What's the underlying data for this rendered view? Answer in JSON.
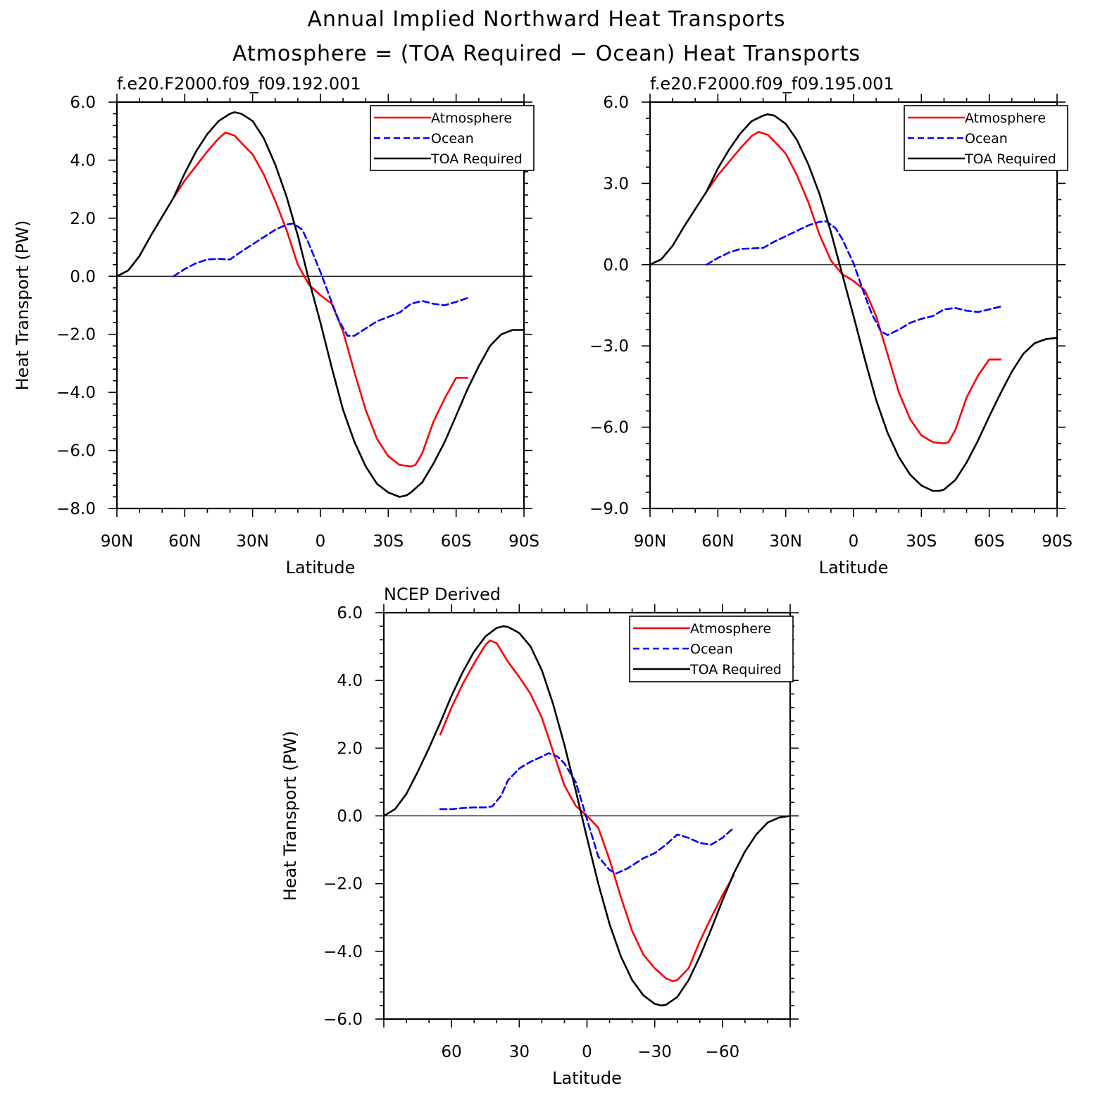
{
  "figure": {
    "title_line1": "Annual Implied Northward Heat Transports",
    "title_line2": "Atmosphere = (TOA Required − Ocean) Heat Transports"
  },
  "colors": {
    "atmosphere": "#ff0000",
    "ocean": "#0000ff",
    "toa": "#000000"
  },
  "legend": {
    "atmosphere": "Atmosphere",
    "ocean": "Ocean",
    "toa": "TOA Required",
    "placement": "top-right"
  },
  "chart_data": [
    {
      "type": "line",
      "title": "f.e20.F2000.f09_f09.192.001",
      "xlabel": "Latitude",
      "ylabel": "Heat Transport (PW)",
      "xlim": [
        90,
        -90
      ],
      "ylim": [
        -8,
        6
      ],
      "xticks": [
        90,
        60,
        30,
        0,
        -30,
        -60,
        -90
      ],
      "xtick_labels": [
        "90N",
        "60N",
        "30N",
        "0",
        "30S",
        "60S",
        "90S"
      ],
      "yticks": [
        6,
        4,
        2,
        0,
        -2,
        -4,
        -6,
        -8
      ],
      "ytick_labels": [
        "6.0",
        "4.0",
        "2.0",
        "0.0",
        "−2.0",
        "−4.0",
        "−6.0",
        "−8.0"
      ],
      "grid": false,
      "series": [
        {
          "name": "Atmosphere",
          "color": "#ff0000",
          "dash": "solid",
          "x": [
            65,
            60,
            55,
            50,
            45,
            42,
            38,
            35,
            30,
            25,
            20,
            15,
            10,
            5,
            0,
            -5,
            -10,
            -15,
            -20,
            -25,
            -30,
            -35,
            -40,
            -42,
            -45,
            -50,
            -55,
            -60,
            -65
          ],
          "y": [
            2.7,
            3.3,
            3.8,
            4.3,
            4.75,
            4.95,
            4.85,
            4.6,
            4.2,
            3.5,
            2.6,
            1.6,
            0.4,
            -0.3,
            -0.65,
            -0.95,
            -1.9,
            -3.3,
            -4.6,
            -5.6,
            -6.2,
            -6.5,
            -6.55,
            -6.5,
            -6.1,
            -5.0,
            -4.2,
            -3.5,
            -3.5
          ]
        },
        {
          "name": "Ocean",
          "color": "#0000ff",
          "dash": "dashed",
          "x": [
            65,
            60,
            55,
            50,
            45,
            40,
            35,
            30,
            25,
            20,
            15,
            12,
            8,
            5,
            0,
            -5,
            -8,
            -12,
            -15,
            -20,
            -25,
            -30,
            -35,
            -40,
            -45,
            -50,
            -55,
            -60,
            -65
          ],
          "y": [
            0.0,
            0.25,
            0.45,
            0.58,
            0.6,
            0.58,
            0.85,
            1.1,
            1.35,
            1.6,
            1.78,
            1.82,
            1.6,
            1.1,
            0.15,
            -0.9,
            -1.5,
            -2.05,
            -2.05,
            -1.8,
            -1.55,
            -1.4,
            -1.25,
            -0.95,
            -0.85,
            -0.95,
            -1.0,
            -0.88,
            -0.75
          ]
        },
        {
          "name": "TOA Required",
          "color": "#000000",
          "dash": "solid",
          "x": [
            90,
            85,
            80,
            75,
            70,
            65,
            60,
            55,
            50,
            45,
            40,
            38,
            35,
            30,
            25,
            20,
            15,
            10,
            5,
            0,
            -5,
            -10,
            -15,
            -20,
            -25,
            -30,
            -35,
            -38,
            -40,
            -45,
            -50,
            -55,
            -60,
            -65,
            -70,
            -75,
            -80,
            -85,
            -90
          ],
          "y": [
            0.0,
            0.2,
            0.7,
            1.4,
            2.05,
            2.7,
            3.55,
            4.3,
            4.9,
            5.35,
            5.6,
            5.65,
            5.6,
            5.35,
            4.75,
            3.85,
            2.75,
            1.4,
            -0.15,
            -1.6,
            -3.15,
            -4.6,
            -5.7,
            -6.55,
            -7.15,
            -7.45,
            -7.6,
            -7.55,
            -7.45,
            -7.1,
            -6.45,
            -5.7,
            -4.8,
            -3.9,
            -3.1,
            -2.4,
            -2.0,
            -1.85,
            -1.85
          ]
        }
      ]
    },
    {
      "type": "line",
      "title": "f.e20.F2000.f09_f09.195.001",
      "xlabel": "Latitude",
      "ylabel": "",
      "xlim": [
        90,
        -90
      ],
      "ylim": [
        -9,
        6
      ],
      "xticks": [
        90,
        60,
        30,
        0,
        -30,
        -60,
        -90
      ],
      "xtick_labels": [
        "90N",
        "60N",
        "30N",
        "0",
        "30S",
        "60S",
        "90S"
      ],
      "yticks": [
        6,
        3,
        0,
        -3,
        -6,
        -9
      ],
      "ytick_labels": [
        "6.0",
        "3.0",
        "0.0",
        "−3.0",
        "−6.0",
        "−9.0"
      ],
      "grid": false,
      "series": [
        {
          "name": "Atmosphere",
          "color": "#ff0000",
          "dash": "solid",
          "x": [
            65,
            60,
            55,
            50,
            45,
            42,
            38,
            35,
            30,
            25,
            20,
            15,
            10,
            5,
            0,
            -5,
            -10,
            -15,
            -20,
            -25,
            -30,
            -35,
            -40,
            -42,
            -45,
            -50,
            -55,
            -60,
            -65
          ],
          "y": [
            2.7,
            3.3,
            3.8,
            4.3,
            4.75,
            4.9,
            4.8,
            4.55,
            4.1,
            3.3,
            2.3,
            1.1,
            0.15,
            -0.35,
            -0.6,
            -0.95,
            -1.9,
            -3.3,
            -4.7,
            -5.7,
            -6.3,
            -6.55,
            -6.6,
            -6.55,
            -6.1,
            -4.9,
            -4.1,
            -3.5,
            -3.5
          ]
        },
        {
          "name": "Ocean",
          "color": "#0000ff",
          "dash": "dashed",
          "x": [
            65,
            60,
            55,
            50,
            45,
            40,
            35,
            30,
            25,
            20,
            15,
            12,
            8,
            5,
            0,
            -5,
            -8,
            -12,
            -15,
            -20,
            -25,
            -30,
            -35,
            -40,
            -45,
            -50,
            -55,
            -60,
            -65
          ],
          "y": [
            0.0,
            0.25,
            0.45,
            0.58,
            0.6,
            0.62,
            0.85,
            1.05,
            1.25,
            1.45,
            1.58,
            1.6,
            1.35,
            0.95,
            0.05,
            -1.15,
            -1.8,
            -2.45,
            -2.6,
            -2.4,
            -2.15,
            -2.0,
            -1.9,
            -1.65,
            -1.6,
            -1.7,
            -1.75,
            -1.65,
            -1.55
          ]
        },
        {
          "name": "TOA Required",
          "color": "#000000",
          "dash": "solid",
          "x": [
            90,
            85,
            80,
            75,
            70,
            65,
            60,
            55,
            50,
            45,
            40,
            38,
            35,
            30,
            25,
            20,
            15,
            10,
            5,
            0,
            -5,
            -10,
            -15,
            -20,
            -25,
            -30,
            -35,
            -38,
            -40,
            -45,
            -50,
            -55,
            -60,
            -65,
            -70,
            -75,
            -80,
            -85,
            -90
          ],
          "y": [
            0.0,
            0.2,
            0.7,
            1.4,
            2.05,
            2.7,
            3.55,
            4.25,
            4.85,
            5.3,
            5.5,
            5.55,
            5.5,
            5.2,
            4.6,
            3.7,
            2.6,
            1.2,
            -0.35,
            -1.9,
            -3.5,
            -5.0,
            -6.2,
            -7.1,
            -7.75,
            -8.15,
            -8.35,
            -8.35,
            -8.3,
            -7.95,
            -7.3,
            -6.5,
            -5.6,
            -4.75,
            -3.95,
            -3.3,
            -2.9,
            -2.75,
            -2.7
          ]
        }
      ]
    },
    {
      "type": "line",
      "title": "NCEP Derived",
      "xlabel": "Latitude",
      "ylabel": "Heat Transport (PW)",
      "xlim": [
        90,
        -90
      ],
      "ylim": [
        -6,
        6
      ],
      "xticks": [
        60,
        30,
        0,
        -30,
        -60
      ],
      "xtick_labels": [
        "60",
        "30",
        "0",
        "−30",
        "−60"
      ],
      "yticks": [
        6,
        4,
        2,
        0,
        -2,
        -4,
        -6
      ],
      "ytick_labels": [
        "6.0",
        "4.0",
        "2.0",
        "0.0",
        "−2.0",
        "−4.0",
        "−6.0"
      ],
      "grid": false,
      "series": [
        {
          "name": "Atmosphere",
          "color": "#ff0000",
          "dash": "solid",
          "x": [
            65,
            60,
            55,
            50,
            45,
            43,
            40,
            35,
            30,
            25,
            20,
            15,
            10,
            5,
            0,
            -5,
            -10,
            -15,
            -20,
            -25,
            -30,
            -35,
            -38,
            -40,
            -45,
            -50,
            -55,
            -60,
            -65
          ],
          "y": [
            2.4,
            3.2,
            3.9,
            4.5,
            5.05,
            5.18,
            5.1,
            4.55,
            4.1,
            3.6,
            2.9,
            1.9,
            0.9,
            0.3,
            0.0,
            -0.35,
            -1.3,
            -2.4,
            -3.4,
            -4.1,
            -4.5,
            -4.8,
            -4.88,
            -4.85,
            -4.5,
            -3.7,
            -3.0,
            -2.35,
            -1.75
          ]
        },
        {
          "name": "Ocean",
          "color": "#0000ff",
          "dash": "dashed",
          "x": [
            65,
            60,
            55,
            50,
            45,
            42,
            38,
            35,
            30,
            25,
            20,
            17,
            13,
            10,
            5,
            0,
            -5,
            -10,
            -13,
            -18,
            -25,
            -30,
            -35,
            -40,
            -45,
            -50,
            -55,
            -60,
            -65
          ],
          "y": [
            0.2,
            0.2,
            0.23,
            0.25,
            0.25,
            0.28,
            0.6,
            1.05,
            1.4,
            1.6,
            1.75,
            1.85,
            1.75,
            1.55,
            1.0,
            -0.1,
            -1.2,
            -1.6,
            -1.7,
            -1.55,
            -1.25,
            -1.1,
            -0.85,
            -0.55,
            -0.65,
            -0.8,
            -0.85,
            -0.65,
            -0.35
          ]
        },
        {
          "name": "TOA Required",
          "color": "#000000",
          "dash": "solid",
          "x": [
            90,
            85,
            80,
            75,
            70,
            65,
            60,
            55,
            50,
            45,
            40,
            37,
            35,
            30,
            25,
            20,
            15,
            10,
            5,
            0,
            -5,
            -10,
            -15,
            -20,
            -25,
            -30,
            -33,
            -35,
            -40,
            -45,
            -50,
            -55,
            -60,
            -65,
            -70,
            -75,
            -80,
            -85,
            -90
          ],
          "y": [
            0.0,
            0.2,
            0.65,
            1.3,
            2.0,
            2.75,
            3.55,
            4.25,
            4.85,
            5.3,
            5.55,
            5.6,
            5.58,
            5.4,
            5.0,
            4.3,
            3.3,
            2.1,
            0.75,
            -0.65,
            -2.0,
            -3.2,
            -4.15,
            -4.85,
            -5.3,
            -5.55,
            -5.6,
            -5.58,
            -5.35,
            -4.85,
            -4.15,
            -3.35,
            -2.5,
            -1.7,
            -1.05,
            -0.55,
            -0.2,
            -0.05,
            0.0
          ]
        }
      ]
    }
  ]
}
